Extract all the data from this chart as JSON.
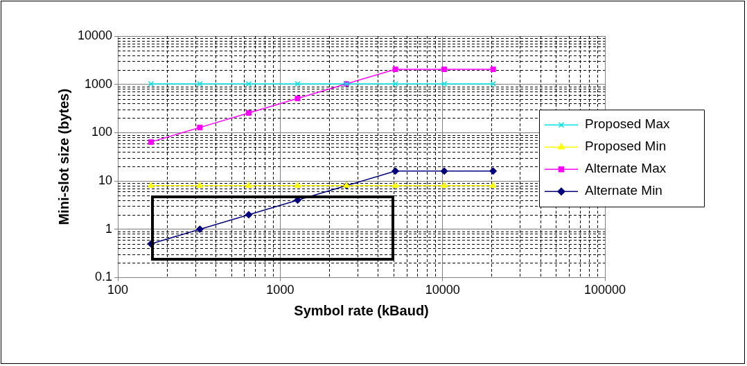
{
  "chart_data": {
    "type": "line",
    "xlabel": "Symbol rate (kBaud)",
    "ylabel": "Mini-slot size (bytes)",
    "x": [
      160,
      320,
      640,
      1280,
      2560,
      5120,
      10240,
      20480
    ],
    "series": [
      {
        "name": "Proposed Max",
        "color": "#00e6e6",
        "marker": "cross",
        "values": [
          1024,
          1024,
          1024,
          1024,
          1024,
          1024,
          1024,
          1024
        ]
      },
      {
        "name": "Proposed Min",
        "color": "#ffff00",
        "marker": "triangle",
        "values": [
          8,
          8,
          8,
          8,
          8,
          8,
          8,
          8
        ]
      },
      {
        "name": "Alternate Max",
        "color": "#ff00ff",
        "marker": "square",
        "values": [
          64,
          128,
          256,
          512,
          1024,
          2048,
          2048,
          2048
        ]
      },
      {
        "name": "Alternate Min",
        "color": "#000080",
        "marker": "diamond",
        "values": [
          0.5,
          1,
          2,
          4,
          8,
          16,
          16,
          16
        ]
      }
    ],
    "log": "xy",
    "xlim": [
      100,
      100000
    ],
    "xticks": [
      100,
      1000,
      10000,
      100000
    ],
    "ylim": [
      0.1,
      10000
    ],
    "yticks": [
      0.1,
      1,
      10,
      100,
      1000,
      10000
    ],
    "grid": true,
    "legend": "right",
    "line_style": "solid"
  }
}
